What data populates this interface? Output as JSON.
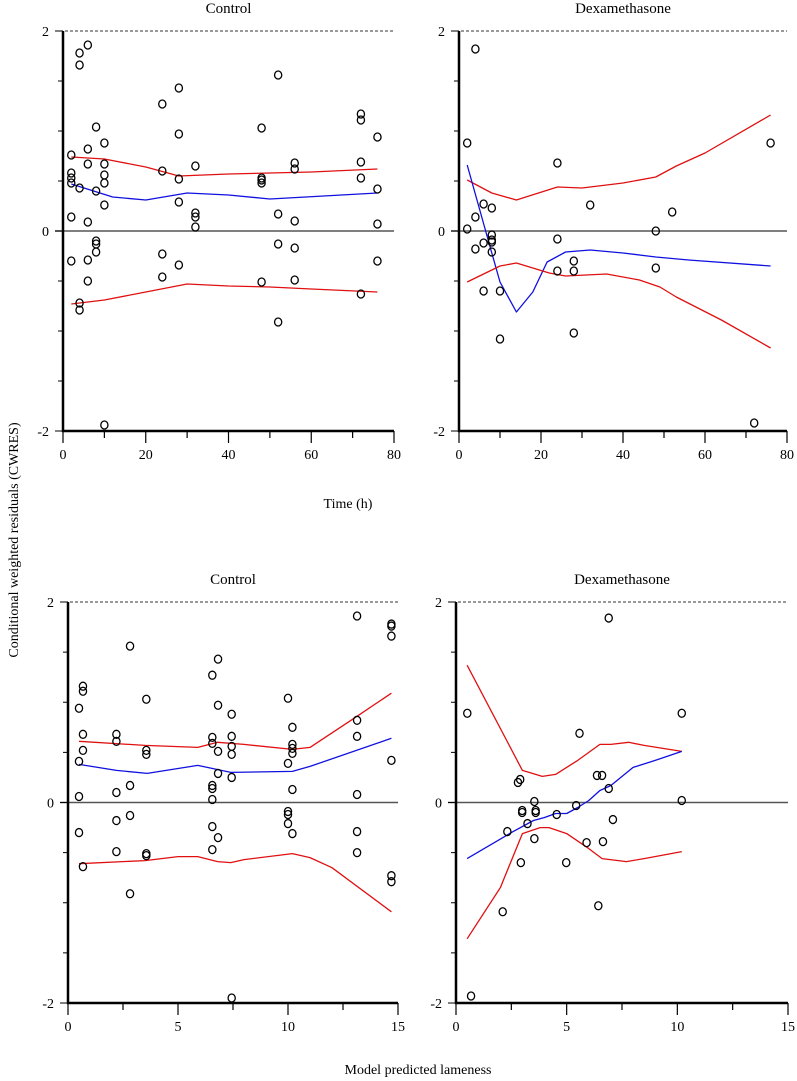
{
  "figure": {
    "ylabel": "Conditional weighted residuals (CWRES)",
    "xlabel_top": "Time (h)",
    "xlabel_bottom": "Model predicted lameness",
    "colors": {
      "points": "#000000",
      "median_line": "#1010e0",
      "percentile_lines": "#e01010",
      "zero_line": "#555555",
      "reference_dashed": "#333333"
    }
  },
  "chart_data": [
    {
      "type": "scatter",
      "title": "Control",
      "xlabel": "Time (h)",
      "ylabel": "Conditional weighted residuals (CWRES)",
      "xlim": [
        0,
        80
      ],
      "ylim": [
        -2,
        2
      ],
      "xticks": [
        0,
        20,
        40,
        60,
        80
      ],
      "xminor": 10,
      "yticks": [
        -2,
        0,
        2
      ],
      "yminor": 0.5,
      "reference_lines": {
        "solid": 0,
        "dashed": 2
      },
      "points": [
        [
          2,
          0.76
        ],
        [
          2,
          0.58
        ],
        [
          2,
          0.53
        ],
        [
          2,
          0.48
        ],
        [
          2,
          0.14
        ],
        [
          2,
          -0.3
        ],
        [
          4,
          1.78
        ],
        [
          4,
          1.66
        ],
        [
          4,
          0.43
        ],
        [
          4,
          -0.72
        ],
        [
          4,
          -0.79
        ],
        [
          6,
          1.86
        ],
        [
          6,
          0.82
        ],
        [
          6,
          0.67
        ],
        [
          6,
          0.09
        ],
        [
          6,
          -0.29
        ],
        [
          6,
          -0.5
        ],
        [
          8,
          1.04
        ],
        [
          8,
          0.4
        ],
        [
          8,
          -0.1
        ],
        [
          8,
          -0.13
        ],
        [
          8,
          -0.21
        ],
        [
          10,
          0.88
        ],
        [
          10,
          0.67
        ],
        [
          10,
          0.56
        ],
        [
          10,
          0.48
        ],
        [
          10,
          0.26
        ],
        [
          10,
          -1.94
        ],
        [
          24,
          1.27
        ],
        [
          24,
          0.6
        ],
        [
          24,
          -0.23
        ],
        [
          24,
          -0.46
        ],
        [
          28,
          1.43
        ],
        [
          28,
          0.97
        ],
        [
          28,
          0.52
        ],
        [
          28,
          0.29
        ],
        [
          28,
          -0.34
        ],
        [
          32,
          0.65
        ],
        [
          32,
          0.18
        ],
        [
          32,
          0.14
        ],
        [
          32,
          0.04
        ],
        [
          48,
          1.03
        ],
        [
          48,
          0.53
        ],
        [
          48,
          0.51
        ],
        [
          48,
          0.48
        ],
        [
          48,
          -0.51
        ],
        [
          52,
          1.56
        ],
        [
          52,
          0.17
        ],
        [
          52,
          -0.13
        ],
        [
          52,
          -0.91
        ],
        [
          56,
          0.68
        ],
        [
          56,
          0.62
        ],
        [
          56,
          0.1
        ],
        [
          56,
          -0.17
        ],
        [
          56,
          -0.49
        ],
        [
          72,
          1.17
        ],
        [
          72,
          1.11
        ],
        [
          72,
          0.69
        ],
        [
          72,
          0.53
        ],
        [
          72,
          -0.63
        ],
        [
          76,
          0.94
        ],
        [
          76,
          0.42
        ],
        [
          76,
          0.07
        ],
        [
          76,
          -0.3
        ]
      ],
      "series": [
        {
          "name": "upper percentile",
          "color": "#e01010",
          "x": [
            2,
            10,
            20,
            28,
            40,
            50,
            60,
            76
          ],
          "y": [
            0.74,
            0.72,
            0.64,
            0.55,
            0.57,
            0.58,
            0.59,
            0.62
          ]
        },
        {
          "name": "median",
          "color": "#1010e0",
          "x": [
            2,
            12,
            20,
            30,
            40,
            50,
            76
          ],
          "y": [
            0.47,
            0.34,
            0.31,
            0.38,
            0.36,
            0.32,
            0.38
          ]
        },
        {
          "name": "lower percentile",
          "color": "#e01010",
          "x": [
            2,
            10,
            20,
            30,
            40,
            50,
            60,
            76
          ],
          "y": [
            -0.73,
            -0.69,
            -0.61,
            -0.53,
            -0.55,
            -0.56,
            -0.58,
            -0.61
          ]
        }
      ]
    },
    {
      "type": "scatter",
      "title": "Dexamethasone",
      "xlabel": "Time (h)",
      "ylabel": "Conditional weighted residuals (CWRES)",
      "xlim": [
        0,
        80
      ],
      "ylim": [
        -2,
        2
      ],
      "xticks": [
        0,
        20,
        40,
        60,
        80
      ],
      "xminor": 10,
      "yticks": [
        -2,
        0,
        2
      ],
      "yminor": 0.5,
      "reference_lines": {
        "solid": 0,
        "dashed": 2
      },
      "points": [
        [
          2,
          0.88
        ],
        [
          2,
          0.02
        ],
        [
          4,
          1.82
        ],
        [
          4,
          0.14
        ],
        [
          4,
          -0.18
        ],
        [
          6,
          0.27
        ],
        [
          6,
          -0.12
        ],
        [
          6,
          -0.6
        ],
        [
          8,
          0.23
        ],
        [
          8,
          -0.04
        ],
        [
          8,
          -0.09
        ],
        [
          8,
          -0.11
        ],
        [
          8,
          -0.21
        ],
        [
          10,
          -0.6
        ],
        [
          10,
          -1.08
        ],
        [
          24,
          0.68
        ],
        [
          24,
          -0.08
        ],
        [
          24,
          -0.4
        ],
        [
          28,
          -0.3
        ],
        [
          28,
          -0.4
        ],
        [
          28,
          -1.02
        ],
        [
          32,
          0.26
        ],
        [
          48,
          0.0
        ],
        [
          48,
          -0.37
        ],
        [
          52,
          0.19
        ],
        [
          72,
          -1.92
        ],
        [
          76,
          0.88
        ]
      ],
      "series": [
        {
          "name": "upper percentile",
          "color": "#e01010",
          "x": [
            2,
            8,
            14,
            24,
            30,
            40,
            48,
            53,
            60,
            76
          ],
          "y": [
            0.51,
            0.38,
            0.31,
            0.44,
            0.43,
            0.48,
            0.54,
            0.65,
            0.78,
            1.16
          ]
        },
        {
          "name": "median",
          "color": "#1010e0",
          "x": [
            2,
            5,
            8,
            10,
            14,
            18,
            21.5,
            26,
            32,
            40,
            48,
            56,
            76
          ],
          "y": [
            0.66,
            0.22,
            -0.22,
            -0.51,
            -0.81,
            -0.61,
            -0.31,
            -0.21,
            -0.19,
            -0.22,
            -0.26,
            -0.29,
            -0.35
          ]
        },
        {
          "name": "lower percentile",
          "color": "#e01010",
          "x": [
            2,
            10,
            14,
            22,
            26,
            36,
            44,
            49,
            53,
            64,
            76
          ],
          "y": [
            -0.51,
            -0.35,
            -0.32,
            -0.42,
            -0.45,
            -0.43,
            -0.49,
            -0.56,
            -0.66,
            -0.89,
            -1.17
          ]
        }
      ]
    },
    {
      "type": "scatter",
      "title": "Control",
      "xlabel": "Model predicted lameness",
      "ylabel": "Conditional weighted residuals (CWRES)",
      "xlim": [
        0,
        15
      ],
      "ylim": [
        -2,
        2
      ],
      "xticks": [
        0,
        5,
        10,
        15
      ],
      "xminor": 2.5,
      "yticks": [
        -2,
        0,
        2
      ],
      "yminor": 0.5,
      "reference_lines": {
        "solid": 0,
        "dashed": 2
      },
      "points": [
        [
          0.5,
          0.94
        ],
        [
          0.68,
          1.16
        ],
        [
          0.68,
          1.11
        ],
        [
          0.68,
          0.68
        ],
        [
          0.68,
          0.52
        ],
        [
          0.5,
          0.41
        ],
        [
          0.5,
          0.06
        ],
        [
          0.5,
          -0.3
        ],
        [
          0.68,
          -0.64
        ],
        [
          2.2,
          0.68
        ],
        [
          2.2,
          0.61
        ],
        [
          2.2,
          0.1
        ],
        [
          2.2,
          -0.18
        ],
        [
          2.2,
          -0.49
        ],
        [
          2.82,
          1.56
        ],
        [
          2.82,
          0.17
        ],
        [
          2.82,
          -0.13
        ],
        [
          2.82,
          -0.91
        ],
        [
          3.56,
          1.03
        ],
        [
          3.56,
          0.52
        ],
        [
          3.56,
          0.48
        ],
        [
          3.56,
          -0.51
        ],
        [
          3.56,
          -0.53
        ],
        [
          6.56,
          1.27
        ],
        [
          6.82,
          1.43
        ],
        [
          6.82,
          0.97
        ],
        [
          6.56,
          0.65
        ],
        [
          6.56,
          0.59
        ],
        [
          6.82,
          0.51
        ],
        [
          6.82,
          0.29
        ],
        [
          6.56,
          0.17
        ],
        [
          6.56,
          0.14
        ],
        [
          6.56,
          0.03
        ],
        [
          6.56,
          -0.24
        ],
        [
          6.82,
          -0.35
        ],
        [
          6.56,
          -0.47
        ],
        [
          7.44,
          0.88
        ],
        [
          7.44,
          0.66
        ],
        [
          7.44,
          0.56
        ],
        [
          7.44,
          0.48
        ],
        [
          7.44,
          0.25
        ],
        [
          7.44,
          -1.95
        ],
        [
          10,
          1.04
        ],
        [
          10.2,
          0.75
        ],
        [
          10.2,
          0.58
        ],
        [
          10.2,
          0.54
        ],
        [
          10.2,
          0.49
        ],
        [
          10,
          0.39
        ],
        [
          10.2,
          0.13
        ],
        [
          10,
          -0.09
        ],
        [
          10,
          -0.12
        ],
        [
          10,
          -0.21
        ],
        [
          10.2,
          -0.31
        ],
        [
          13.14,
          1.86
        ],
        [
          13.14,
          0.82
        ],
        [
          13.14,
          0.66
        ],
        [
          13.14,
          0.08
        ],
        [
          13.14,
          -0.29
        ],
        [
          13.14,
          -0.5
        ],
        [
          14.7,
          1.78
        ],
        [
          14.7,
          1.76
        ],
        [
          14.7,
          1.66
        ],
        [
          14.7,
          0.42
        ],
        [
          14.7,
          -0.73
        ],
        [
          14.7,
          -0.79
        ]
      ],
      "series": [
        {
          "name": "upper percentile",
          "color": "#e01010",
          "x": [
            0.5,
            3.5,
            5.9,
            6.8,
            8,
            10.2,
            11,
            13,
            14.7
          ],
          "y": [
            0.61,
            0.57,
            0.55,
            0.6,
            0.58,
            0.53,
            0.55,
            0.84,
            1.09
          ]
        },
        {
          "name": "median",
          "color": "#1010e0",
          "x": [
            0.5,
            2.2,
            3.6,
            5.9,
            7.4,
            10.2,
            11,
            14.7
          ],
          "y": [
            0.38,
            0.32,
            0.29,
            0.37,
            0.3,
            0.31,
            0.36,
            0.64
          ]
        },
        {
          "name": "lower percentile",
          "color": "#e01010",
          "x": [
            0.5,
            3.5,
            5,
            5.9,
            6.8,
            7.4,
            8,
            10.2,
            11,
            12,
            14.7
          ],
          "y": [
            -0.61,
            -0.58,
            -0.54,
            -0.54,
            -0.59,
            -0.6,
            -0.57,
            -0.51,
            -0.55,
            -0.65,
            -1.09
          ]
        }
      ]
    },
    {
      "type": "scatter",
      "title": "Dexamethasone",
      "xlabel": "Model predicted lameness",
      "ylabel": "Conditional weighted residuals (CWRES)",
      "xlim": [
        0,
        15
      ],
      "ylim": [
        -2,
        2
      ],
      "xticks": [
        0,
        5,
        10,
        15
      ],
      "xminor": 2.5,
      "yticks": [
        -2,
        0,
        2
      ],
      "yminor": 0.5,
      "reference_lines": {
        "solid": 0,
        "dashed": 2
      },
      "points": [
        [
          0.51,
          0.89
        ],
        [
          6.9,
          1.84
        ],
        [
          5.58,
          0.69
        ],
        [
          10.2,
          0.89
        ],
        [
          2.8,
          0.2
        ],
        [
          2.9,
          0.23
        ],
        [
          6.37,
          0.27
        ],
        [
          6.6,
          0.27
        ],
        [
          6.9,
          0.14
        ],
        [
          10.2,
          0.02
        ],
        [
          3.54,
          0.01
        ],
        [
          2.99,
          -0.08
        ],
        [
          2.99,
          -0.1
        ],
        [
          3.6,
          -0.08
        ],
        [
          3.6,
          -0.1
        ],
        [
          4.55,
          -0.12
        ],
        [
          5.43,
          -0.03
        ],
        [
          3.23,
          -0.21
        ],
        [
          2.32,
          -0.29
        ],
        [
          3.54,
          -0.36
        ],
        [
          5.9,
          -0.4
        ],
        [
          6.64,
          -0.39
        ],
        [
          7.09,
          -0.17
        ],
        [
          2.93,
          -0.6
        ],
        [
          4.98,
          -0.6
        ],
        [
          2.11,
          -1.09
        ],
        [
          6.43,
          -1.03
        ],
        [
          0.68,
          -1.93
        ]
      ],
      "series": [
        {
          "name": "upper percentile",
          "color": "#e01010",
          "x": [
            0.5,
            3,
            3.9,
            4.5,
            5.5,
            6.5,
            7,
            7.8,
            8.5,
            10.2
          ],
          "y": [
            1.37,
            0.32,
            0.26,
            0.28,
            0.42,
            0.58,
            0.58,
            0.6,
            0.57,
            0.51
          ]
        },
        {
          "name": "median",
          "color": "#1010e0",
          "x": [
            0.5,
            2.5,
            3.5,
            4,
            4.5,
            5,
            5.5,
            6,
            6.5,
            7,
            8,
            9,
            10.2
          ],
          "y": [
            -0.56,
            -0.3,
            -0.18,
            -0.15,
            -0.11,
            -0.11,
            -0.05,
            0.02,
            0.12,
            0.17,
            0.35,
            0.42,
            0.51
          ]
        },
        {
          "name": "lower percentile",
          "color": "#e01010",
          "x": [
            0.5,
            2,
            3,
            3.8,
            4.2,
            5,
            6,
            6.6,
            7.7,
            8.5,
            10.2
          ],
          "y": [
            -1.36,
            -0.85,
            -0.31,
            -0.25,
            -0.25,
            -0.31,
            -0.46,
            -0.56,
            -0.59,
            -0.56,
            -0.49
          ]
        }
      ]
    }
  ]
}
